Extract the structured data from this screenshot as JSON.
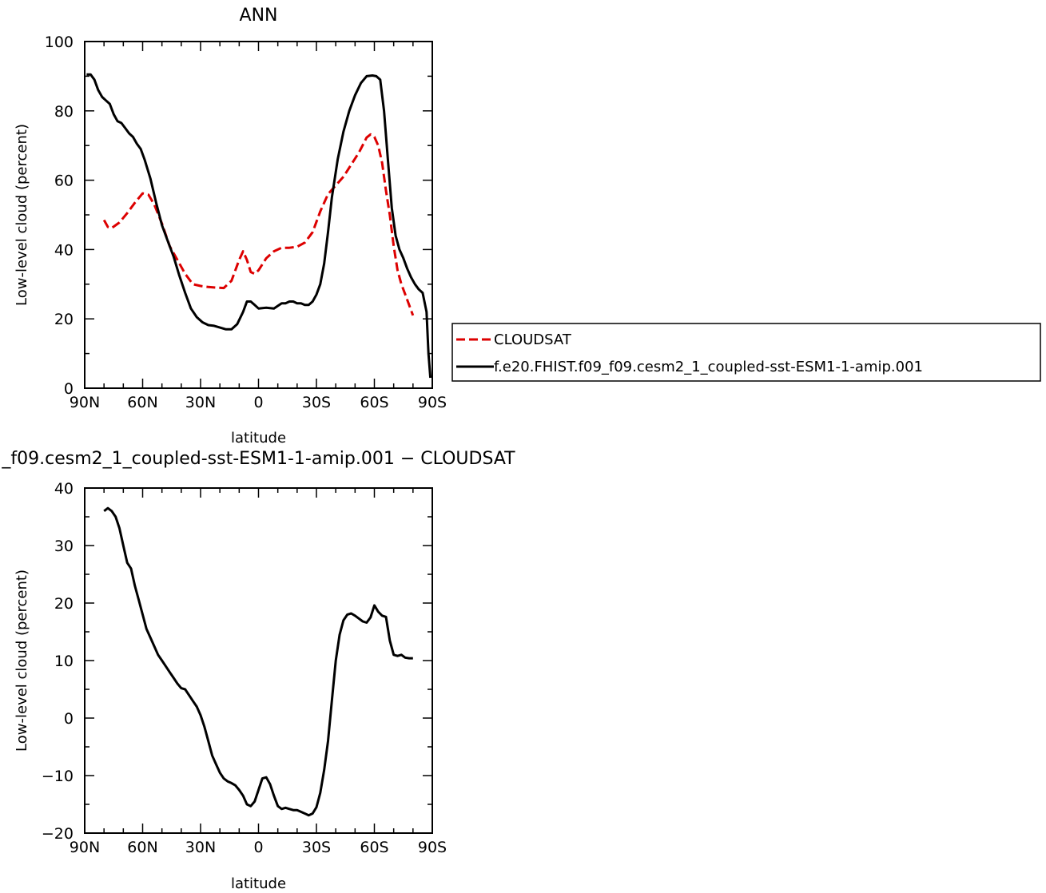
{
  "chart_data": [
    {
      "type": "line",
      "title": "ANN",
      "xlabel": "latitude",
      "ylabel": "Low-level cloud (percent)",
      "xlim": [
        90,
        -90
      ],
      "ylim": [
        0,
        100
      ],
      "xticks": [
        90,
        60,
        30,
        0,
        -30,
        -60,
        -90
      ],
      "xtick_labels": [
        "90N",
        "60N",
        "30N",
        "0",
        "30S",
        "60S",
        "90S"
      ],
      "yticks": [
        0,
        20,
        40,
        60,
        80,
        100
      ],
      "ytick_labels": [
        "0",
        "20",
        "40",
        "60",
        "80",
        "100"
      ],
      "grid": false,
      "legend_position": "right",
      "series": [
        {
          "name": "CLOUDSAT",
          "color": "#dd0000",
          "dash": "dashed",
          "x": [
            80,
            78,
            76,
            72,
            68,
            64,
            60,
            57,
            54,
            50,
            46,
            42,
            38,
            34,
            30,
            26,
            22,
            18,
            14,
            10,
            8,
            6,
            4,
            2,
            0,
            -4,
            -8,
            -12,
            -16,
            -20,
            -24,
            -28,
            -32,
            -36,
            -40,
            -44,
            -48,
            -52,
            -56,
            -58,
            -60,
            -62,
            -64,
            -66,
            -68,
            -70,
            -72,
            -74,
            -76,
            -78,
            -80
          ],
          "y": [
            48.5,
            46.5,
            46.2,
            47.8,
            50.5,
            53.5,
            56.2,
            55.8,
            53,
            47.5,
            41,
            37,
            33,
            30,
            29.5,
            29.2,
            29,
            28.9,
            31,
            37,
            39.5,
            37,
            33.5,
            33,
            34,
            37.5,
            39.5,
            40.5,
            40.5,
            40.8,
            42,
            45,
            51,
            56,
            58.5,
            61,
            64.5,
            68,
            72.3,
            73.2,
            72.5,
            70,
            65,
            57,
            50,
            41,
            34,
            30,
            27,
            24,
            21
          ]
        },
        {
          "name": "f.e20.FHIST.f09_f09.cesm2_1_coupled-sst-ESM1-1-amip.001",
          "color": "#000000",
          "dash": "solid",
          "x": [
            89,
            87,
            85,
            83,
            81,
            79,
            77,
            75,
            73,
            71,
            69,
            67,
            65,
            63,
            61,
            59,
            56,
            53,
            50,
            47,
            44,
            41,
            38,
            35,
            32,
            29,
            26,
            23,
            20,
            17,
            14,
            11,
            8,
            6,
            4,
            2,
            0,
            -4,
            -8,
            -12,
            -14,
            -16,
            -18,
            -20,
            -22,
            -24,
            -26,
            -28,
            -30,
            -32,
            -34,
            -36,
            -38,
            -41,
            -44,
            -47,
            -50,
            -53,
            -56,
            -59,
            -61,
            -63,
            -65,
            -67,
            -69,
            -71,
            -73,
            -75,
            -77,
            -79,
            -81,
            -83,
            -85,
            -87,
            -88,
            -89
          ],
          "y": [
            90.5,
            90.5,
            89,
            86,
            84,
            83,
            82,
            79,
            77,
            76.5,
            75,
            73.5,
            72.5,
            70.5,
            69,
            66,
            60.5,
            53.5,
            47,
            42.5,
            38,
            32.5,
            27.5,
            23,
            20.5,
            19,
            18.2,
            18,
            17.5,
            17,
            17,
            18.5,
            22,
            25,
            25,
            24,
            23,
            23.2,
            23,
            24.5,
            24.5,
            25,
            25,
            24.5,
            24.5,
            24,
            24,
            25,
            27,
            30,
            36,
            45,
            55,
            66,
            74,
            80,
            84.5,
            88,
            90,
            90.2,
            90,
            89,
            80,
            66,
            52,
            44,
            40,
            37.5,
            34.5,
            32,
            30,
            28.5,
            27.5,
            22,
            10,
            3
          ]
        }
      ]
    },
    {
      "type": "line",
      "title": "_f09.cesm2_1_coupled-sst-ESM1-1-amip.001 − CLOUDSAT",
      "xlabel": "latitude",
      "ylabel": "Low-level cloud (percent)",
      "xlim": [
        90,
        -90
      ],
      "ylim": [
        -20,
        40
      ],
      "xticks": [
        90,
        60,
        30,
        0,
        -30,
        -60,
        -90
      ],
      "xtick_labels": [
        "90N",
        "60N",
        "30N",
        "0",
        "30S",
        "60S",
        "90S"
      ],
      "yticks": [
        -20,
        -10,
        0,
        10,
        20,
        30,
        40
      ],
      "ytick_labels": [
        "−20",
        "−10",
        "0",
        "10",
        "20",
        "30",
        "40"
      ],
      "grid": false,
      "series": [
        {
          "color": "#000000",
          "dash": "solid",
          "x": [
            80,
            78,
            76,
            74,
            72,
            70,
            68,
            66,
            64,
            62,
            60,
            58,
            56,
            54,
            52,
            50,
            48,
            46,
            44,
            42,
            40,
            38,
            36,
            34,
            32,
            30,
            28,
            26,
            24,
            22,
            20,
            18,
            16,
            14,
            12,
            10,
            8,
            6,
            4,
            2,
            0,
            -2,
            -4,
            -6,
            -8,
            -10,
            -12,
            -14,
            -16,
            -18,
            -20,
            -22,
            -24,
            -26,
            -28,
            -30,
            -32,
            -34,
            -36,
            -38,
            -40,
            -42,
            -44,
            -46,
            -48,
            -50,
            -52,
            -54,
            -56,
            -58,
            -60,
            -62,
            -64,
            -66,
            -68,
            -70,
            -72,
            -74,
            -76,
            -78,
            -80
          ],
          "y": [
            36,
            36.5,
            36,
            35,
            33,
            30,
            27,
            26,
            23,
            20.5,
            18,
            15.5,
            14,
            12.5,
            11,
            10,
            9,
            8,
            7,
            6,
            5.2,
            5,
            4,
            3,
            2,
            0.5,
            -1.5,
            -4,
            -6.5,
            -8,
            -9.5,
            -10.5,
            -11,
            -11.3,
            -11.7,
            -12.5,
            -13.5,
            -15,
            -15.3,
            -14.5,
            -12.5,
            -10.5,
            -10.3,
            -11.5,
            -13.5,
            -15.3,
            -15.8,
            -15.6,
            -15.8,
            -16,
            -16,
            -16.3,
            -16.6,
            -16.9,
            -16.6,
            -15.5,
            -13,
            -9,
            -4,
            3,
            10,
            14.5,
            17,
            18,
            18.2,
            17.8,
            17.3,
            16.8,
            16.6,
            17.5,
            19.6,
            18.5,
            17.8,
            17.6,
            13.5,
            11,
            10.8,
            11,
            10.5,
            10.4,
            10.4
          ]
        }
      ]
    }
  ]
}
